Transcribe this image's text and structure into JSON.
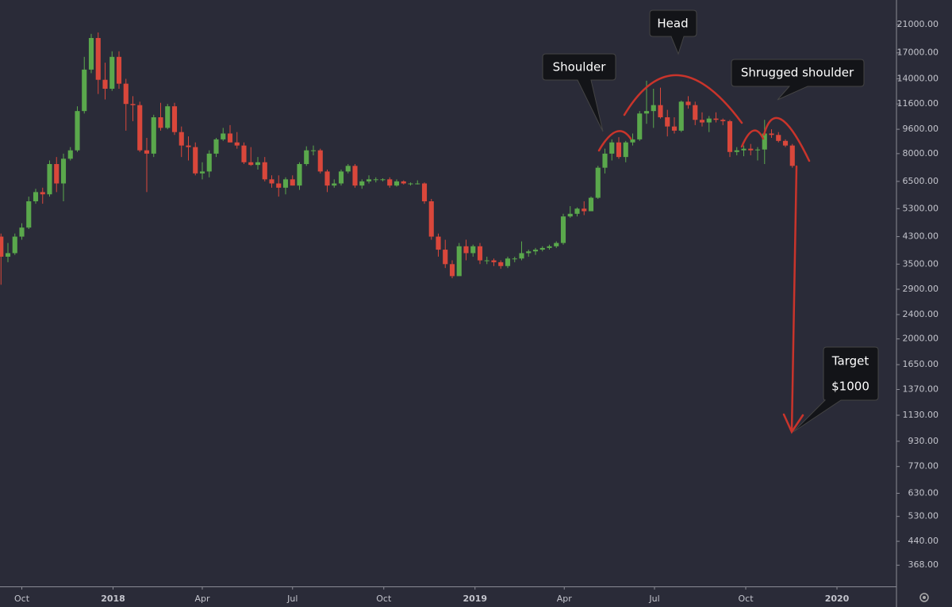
{
  "chart_data": {
    "type": "candlestick",
    "log_scale": true,
    "grid": false,
    "up_color": "#5aa84c",
    "down_color": "#d9473b",
    "annotations": [
      "Shoulder",
      "Head",
      "Shrugged shoulder",
      "Target",
      "$1000"
    ],
    "xlim": [
      "2017-09-09",
      "2020-03-01"
    ],
    "xticks": [
      {
        "value": "2017-10-01",
        "label": "Oct"
      },
      {
        "value": "2018-01-01",
        "label": "2018"
      },
      {
        "value": "2018-04-01",
        "label": "Apr"
      },
      {
        "value": "2018-07-01",
        "label": "Jul"
      },
      {
        "value": "2018-10-01",
        "label": "Oct"
      },
      {
        "value": "2019-01-01",
        "label": "2019"
      },
      {
        "value": "2019-04-01",
        "label": "Apr"
      },
      {
        "value": "2019-07-01",
        "label": "Jul"
      },
      {
        "value": "2019-10-01",
        "label": "Oct"
      },
      {
        "value": "2020-01-01",
        "label": "2020"
      }
    ],
    "ylim": [
      314,
      25250
    ],
    "yticks": [
      {
        "value": 21000,
        "label": "21000.00"
      },
      {
        "value": 17000,
        "label": "17000.00"
      },
      {
        "value": 14000,
        "label": "14000.00"
      },
      {
        "value": 11600,
        "label": "11600.00"
      },
      {
        "value": 9600,
        "label": "9600.00"
      },
      {
        "value": 8000,
        "label": "8000.00"
      },
      {
        "value": 6500,
        "label": "6500.00"
      },
      {
        "value": 5300,
        "label": "5300.00"
      },
      {
        "value": 4300,
        "label": "4300.00"
      },
      {
        "value": 3500,
        "label": "3500.00"
      },
      {
        "value": 2900,
        "label": "2900.00"
      },
      {
        "value": 2400,
        "label": "2400.00"
      },
      {
        "value": 2000,
        "label": "2000.00"
      },
      {
        "value": 1650,
        "label": "1650.00"
      },
      {
        "value": 1370,
        "label": "1370.00"
      },
      {
        "value": 1130,
        "label": "1130.00"
      },
      {
        "value": 930,
        "label": "930.00"
      },
      {
        "value": 770,
        "label": "770.00"
      },
      {
        "value": 630,
        "label": "630.00"
      },
      {
        "value": 530,
        "label": "530.00"
      },
      {
        "value": 440,
        "label": "440.00"
      },
      {
        "value": 368,
        "label": "368.00"
      }
    ],
    "x": [
      "2017-09-10",
      "2017-09-17",
      "2017-09-24",
      "2017-10-01",
      "2017-10-08",
      "2017-10-15",
      "2017-10-22",
      "2017-10-29",
      "2017-11-05",
      "2017-11-12",
      "2017-11-19",
      "2017-11-26",
      "2017-12-03",
      "2017-12-10",
      "2017-12-17",
      "2017-12-24",
      "2017-12-31",
      "2018-01-07",
      "2018-01-14",
      "2018-01-21",
      "2018-01-28",
      "2018-02-04",
      "2018-02-11",
      "2018-02-18",
      "2018-02-25",
      "2018-03-04",
      "2018-03-11",
      "2018-03-18",
      "2018-03-25",
      "2018-04-01",
      "2018-04-08",
      "2018-04-15",
      "2018-04-22",
      "2018-04-29",
      "2018-05-06",
      "2018-05-13",
      "2018-05-20",
      "2018-05-27",
      "2018-06-03",
      "2018-06-10",
      "2018-06-17",
      "2018-06-24",
      "2018-07-01",
      "2018-07-08",
      "2018-07-15",
      "2018-07-22",
      "2018-07-29",
      "2018-08-05",
      "2018-08-12",
      "2018-08-19",
      "2018-08-26",
      "2018-09-02",
      "2018-09-09",
      "2018-09-16",
      "2018-09-23",
      "2018-09-30",
      "2018-10-07",
      "2018-10-14",
      "2018-10-21",
      "2018-10-28",
      "2018-11-04",
      "2018-11-11",
      "2018-11-18",
      "2018-11-25",
      "2018-12-02",
      "2018-12-09",
      "2018-12-16",
      "2018-12-23",
      "2018-12-30",
      "2019-01-06",
      "2019-01-13",
      "2019-01-20",
      "2019-01-27",
      "2019-02-03",
      "2019-02-10",
      "2019-02-17",
      "2019-02-24",
      "2019-03-03",
      "2019-03-10",
      "2019-03-17",
      "2019-03-24",
      "2019-03-31",
      "2019-04-07",
      "2019-04-14",
      "2019-04-21",
      "2019-04-28",
      "2019-05-05",
      "2019-05-12",
      "2019-05-19",
      "2019-05-26",
      "2019-06-02",
      "2019-06-09",
      "2019-06-16",
      "2019-06-23",
      "2019-06-30",
      "2019-07-07",
      "2019-07-14",
      "2019-07-21",
      "2019-07-28",
      "2019-08-04",
      "2019-08-11",
      "2019-08-18",
      "2019-08-25",
      "2019-09-01",
      "2019-09-08",
      "2019-09-15",
      "2019-09-22",
      "2019-09-29",
      "2019-10-06",
      "2019-10-13",
      "2019-10-20",
      "2019-10-27",
      "2019-11-03",
      "2019-11-10",
      "2019-11-17"
    ],
    "open": [
      4300,
      3700,
      3800,
      4300,
      4600,
      5600,
      6000,
      5900,
      7400,
      6400,
      7700,
      8200,
      11000,
      15000,
      19000,
      13900,
      13000,
      16500,
      13500,
      11600,
      11500,
      8200,
      8000,
      10500,
      9700,
      11400,
      9400,
      8500,
      8400,
      6900,
      7000,
      8000,
      8900,
      9300,
      8700,
      8500,
      7500,
      7350,
      7500,
      6600,
      6400,
      6200,
      6600,
      6300,
      7400,
      8200,
      8200,
      7000,
      6300,
      6400,
      7000,
      7300,
      6300,
      6500,
      6600,
      6600,
      6600,
      6300,
      6500,
      6400,
      6400,
      6400,
      5600,
      4300,
      3900,
      3500,
      3200,
      4000,
      3800,
      4000,
      3600,
      3600,
      3550,
      3450,
      3650,
      3650,
      3800,
      3850,
      3900,
      3950,
      4000,
      4100,
      5000,
      5100,
      5300,
      5200,
      5750,
      7200,
      8000,
      8700,
      7800,
      8700,
      8900,
      10800,
      11000,
      11500,
      10500,
      9800,
      9500,
      11800,
      11500,
      10300,
      10100,
      10400,
      10300,
      10200,
      8100,
      8200,
      8300,
      8200,
      8250,
      9300,
      9200,
      8800,
      8500
    ],
    "high": [
      4400,
      4100,
      4400,
      4750,
      5800,
      6150,
      6200,
      7600,
      7800,
      8000,
      8400,
      11400,
      16500,
      19600,
      19800,
      15800,
      17200,
      17200,
      14000,
      12300,
      11800,
      9000,
      10700,
      11700,
      11600,
      11700,
      9800,
      9100,
      8700,
      7500,
      8200,
      9000,
      9700,
      9900,
      9400,
      8700,
      8400,
      7800,
      7800,
      6800,
      6800,
      6700,
      6800,
      7500,
      8450,
      8500,
      8300,
      7100,
      6600,
      7100,
      7400,
      7400,
      6600,
      6800,
      6700,
      6650,
      6700,
      6600,
      6550,
      6450,
      6550,
      6450,
      5700,
      4400,
      4200,
      3600,
      4100,
      4200,
      4050,
      4100,
      3700,
      3650,
      3600,
      3700,
      3700,
      4150,
      3900,
      3950,
      4000,
      4050,
      4150,
      5100,
      5400,
      5350,
      5600,
      5800,
      7300,
      8300,
      8900,
      9050,
      8800,
      9300,
      11000,
      13800,
      13000,
      13100,
      11100,
      10500,
      11900,
      12300,
      11800,
      10900,
      10600,
      10900,
      10400,
      10300,
      8400,
      8500,
      8600,
      8400,
      10300,
      9600,
      9400,
      8900,
      8600
    ],
    "low": [
      3000,
      3550,
      3750,
      4200,
      4550,
      5500,
      5500,
      5800,
      6000,
      5600,
      7600,
      8100,
      10800,
      14600,
      12500,
      12000,
      12800,
      13000,
      9500,
      10200,
      8100,
      6000,
      7800,
      9500,
      9600,
      9200,
      7800,
      7600,
      6800,
      6600,
      6700,
      7800,
      8800,
      8700,
      8300,
      7400,
      7300,
      7100,
      6500,
      6200,
      5800,
      5900,
      6300,
      6100,
      7300,
      7900,
      6900,
      6000,
      6200,
      6300,
      6900,
      6200,
      6150,
      6400,
      6450,
      6500,
      6200,
      6250,
      6350,
      6300,
      6350,
      5500,
      4200,
      3700,
      3400,
      3150,
      3200,
      3600,
      3700,
      3500,
      3500,
      3450,
      3380,
      3400,
      3550,
      3600,
      3700,
      3750,
      3850,
      3900,
      3950,
      4050,
      4950,
      5000,
      5050,
      5200,
      5700,
      6900,
      7600,
      7700,
      7500,
      8500,
      8800,
      10000,
      9700,
      10400,
      9100,
      9300,
      9400,
      11200,
      9900,
      9800,
      9400,
      10100,
      9900,
      7800,
      7900,
      7850,
      7900,
      7600,
      7400,
      9000,
      8700,
      8400,
      7200
    ],
    "close": [
      3700,
      3800,
      4300,
      4600,
      5600,
      6000,
      5900,
      7400,
      6400,
      7700,
      8200,
      11000,
      15000,
      19000,
      13900,
      13000,
      16500,
      13500,
      11600,
      11500,
      8200,
      8000,
      10500,
      9700,
      11400,
      9400,
      8500,
      8400,
      6900,
      7000,
      8000,
      8900,
      9300,
      8700,
      8500,
      7500,
      7350,
      7500,
      6600,
      6400,
      6200,
      6600,
      6300,
      7400,
      8200,
      8200,
      7000,
      6300,
      6400,
      7000,
      7300,
      6300,
      6500,
      6600,
      6600,
      6600,
      6300,
      6500,
      6400,
      6400,
      6400,
      5600,
      4300,
      3900,
      3500,
      3200,
      4000,
      3800,
      4000,
      3600,
      3600,
      3550,
      3450,
      3650,
      3650,
      3800,
      3850,
      3900,
      3950,
      4000,
      4100,
      5000,
      5100,
      5300,
      5200,
      5750,
      7200,
      8000,
      8700,
      7800,
      8700,
      8900,
      10800,
      11000,
      11500,
      10500,
      9800,
      9500,
      11800,
      11500,
      10300,
      10100,
      10400,
      10300,
      10200,
      8100,
      8200,
      8300,
      8200,
      8250,
      9300,
      9200,
      8800,
      8500,
      7300
    ]
  }
}
